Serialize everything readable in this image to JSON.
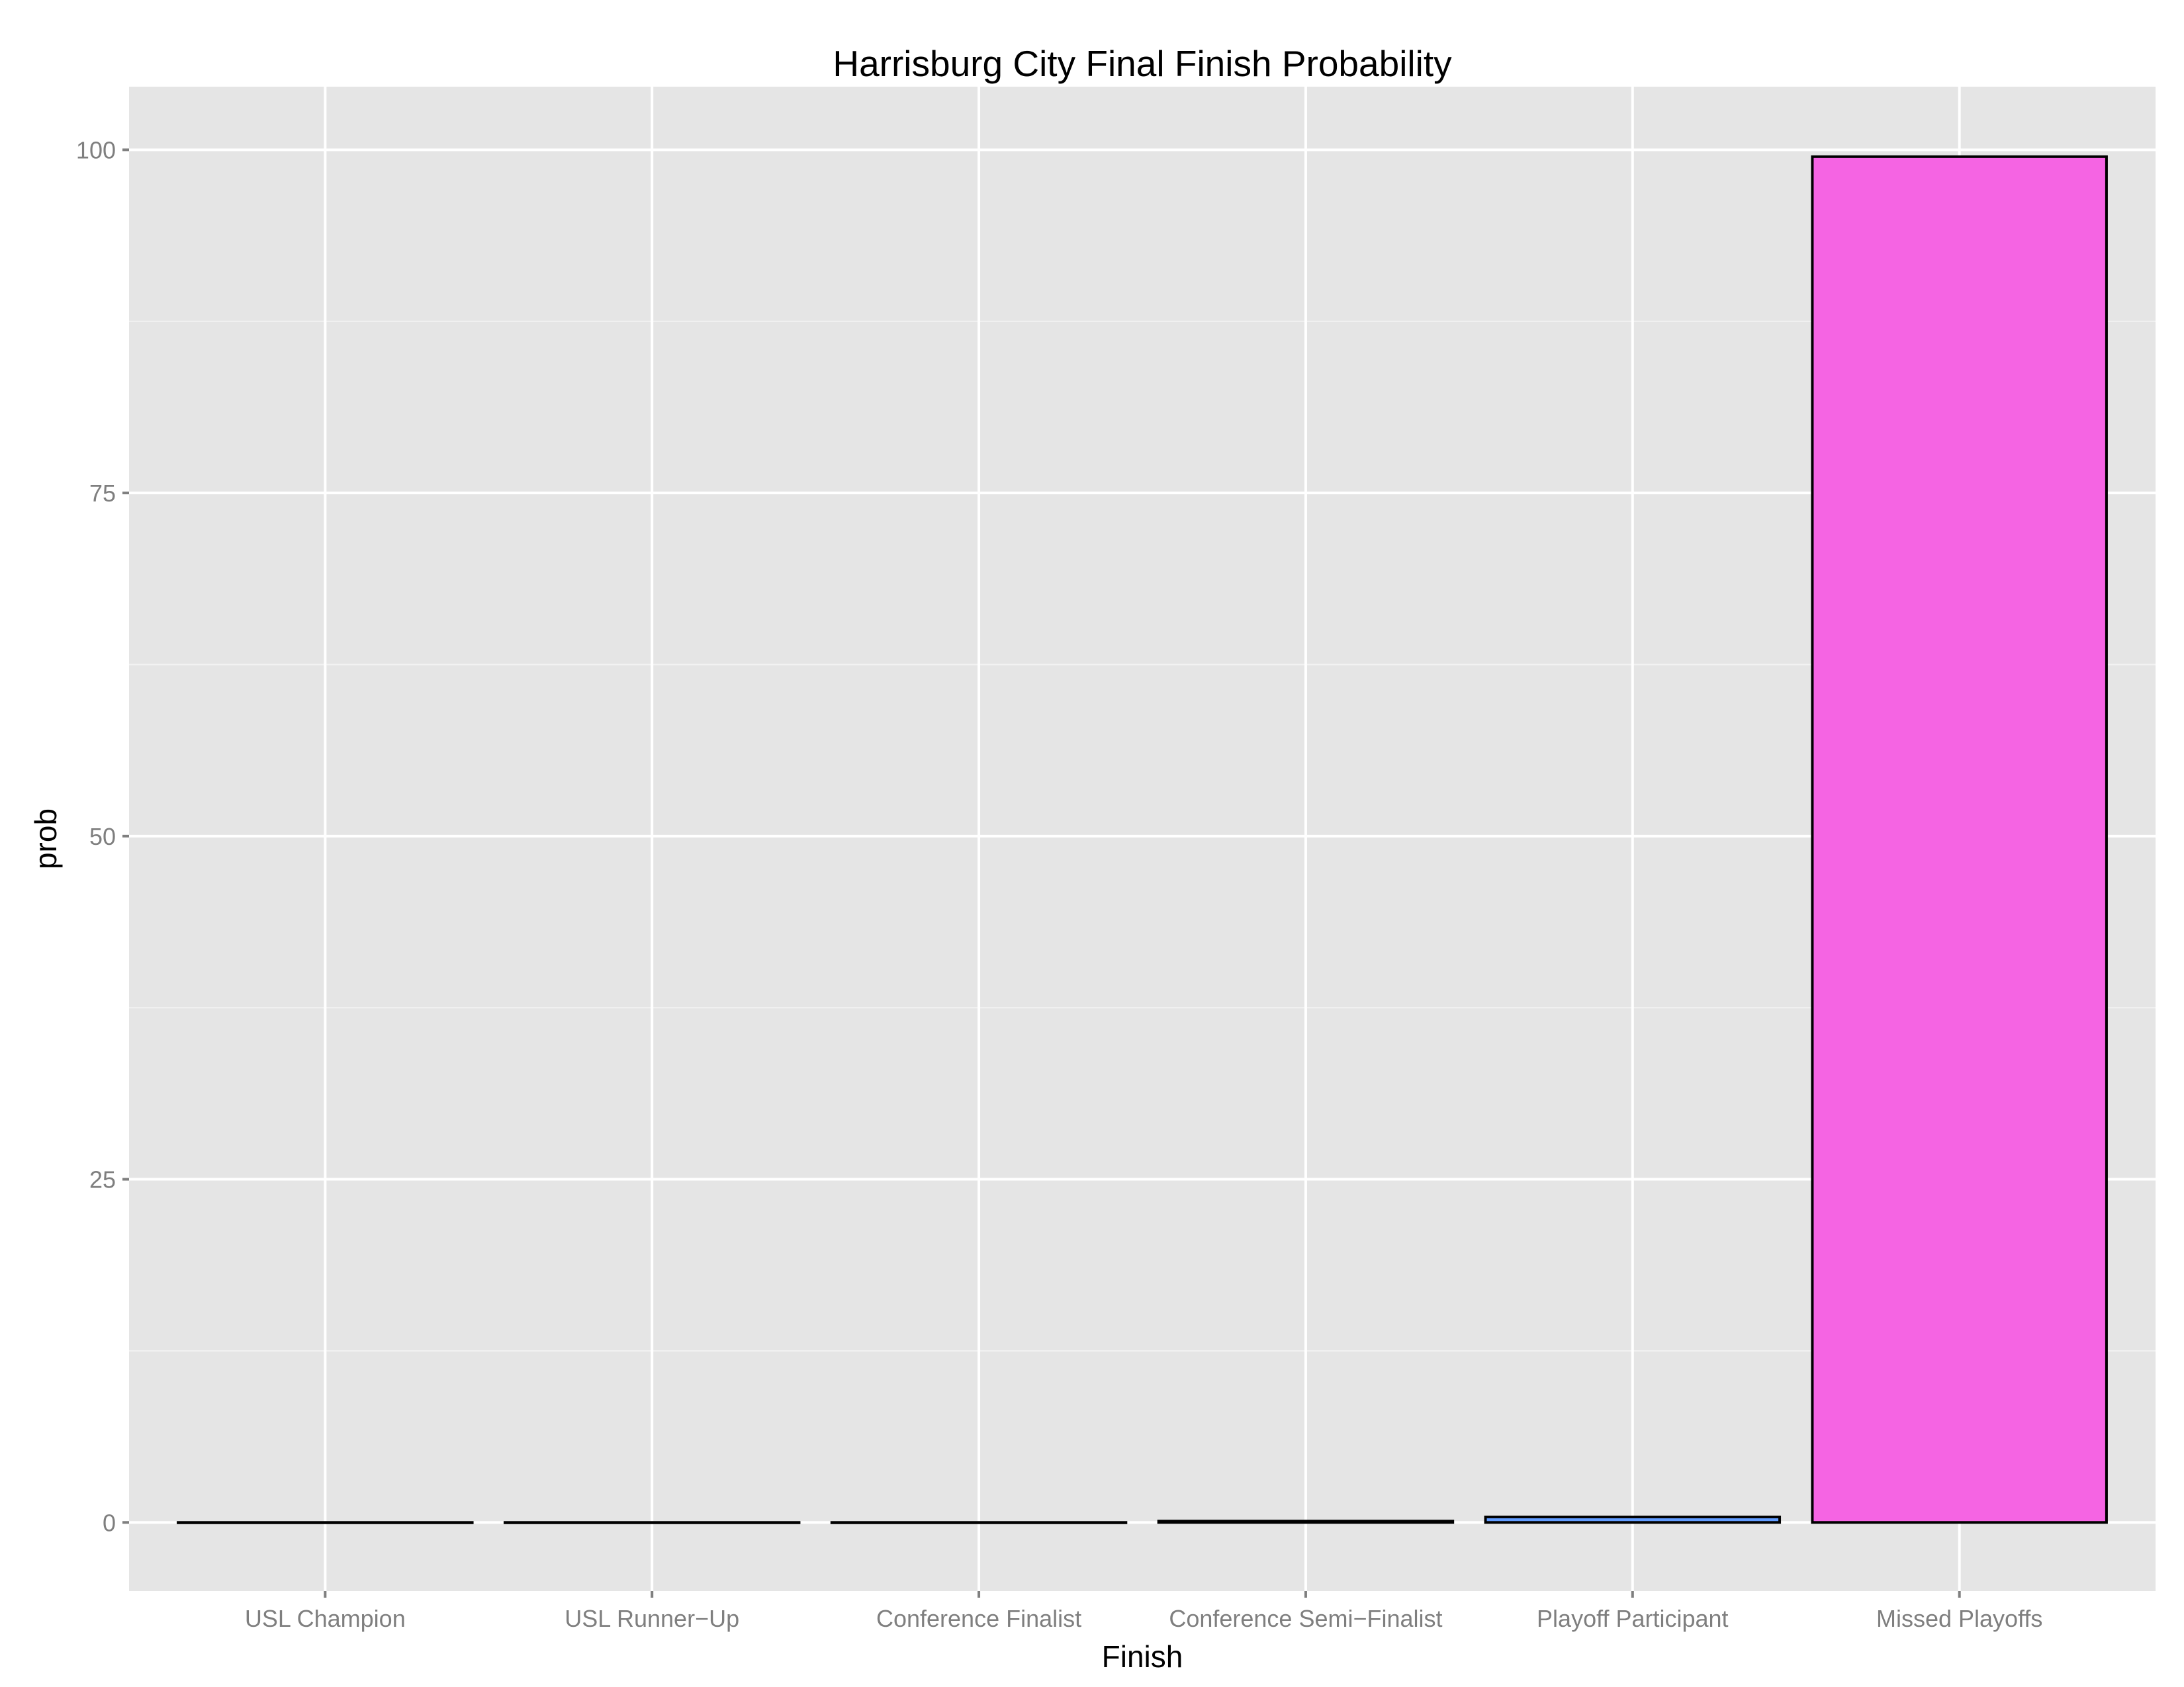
{
  "chart_data": {
    "type": "bar",
    "title": "Harrisburg City Final Finish Probability",
    "xlabel": "Finish",
    "ylabel": "prob",
    "categories": [
      "USL Champion",
      "USL Runner−Up",
      "Conference Finalist",
      "Conference Semi−Finalist",
      "Playoff Participant",
      "Missed Playoffs"
    ],
    "values": [
      0,
      0,
      0,
      0.1,
      0.4,
      99.5
    ],
    "colors": [
      "#F8766D",
      "#B79F00",
      "#00BA38",
      "#00BFC4",
      "#619CFF",
      "#F564E3"
    ],
    "ylim": [
      -5,
      104.6
    ],
    "yticks": [
      "0",
      "25",
      "50",
      "75",
      "100"
    ],
    "grid": true,
    "panel_background": "#E5E5E5"
  }
}
